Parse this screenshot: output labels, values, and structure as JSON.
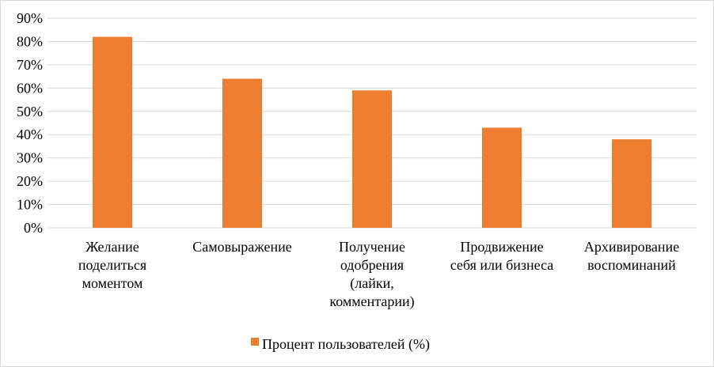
{
  "chart_data": {
    "type": "bar",
    "categories": [
      [
        "Желание",
        "поделиться",
        "моментом"
      ],
      [
        "Самовыражение"
      ],
      [
        "Получение",
        "одобрения",
        "(лайки,",
        "комментарии)"
      ],
      [
        "Продвижение",
        "себя или бизнеса"
      ],
      [
        "Архивирование",
        "воспоминаний"
      ]
    ],
    "series": [
      {
        "name": "Процент пользователей (%)",
        "values": [
          82,
          64,
          59,
          43,
          38
        ],
        "color": "#ed7d31"
      }
    ],
    "ylim": [
      0,
      90
    ],
    "yticks": [
      "0%",
      "10%",
      "20%",
      "30%",
      "40%",
      "50%",
      "60%",
      "70%",
      "80%",
      "90%"
    ],
    "grid": true,
    "legend_position": "bottom"
  }
}
